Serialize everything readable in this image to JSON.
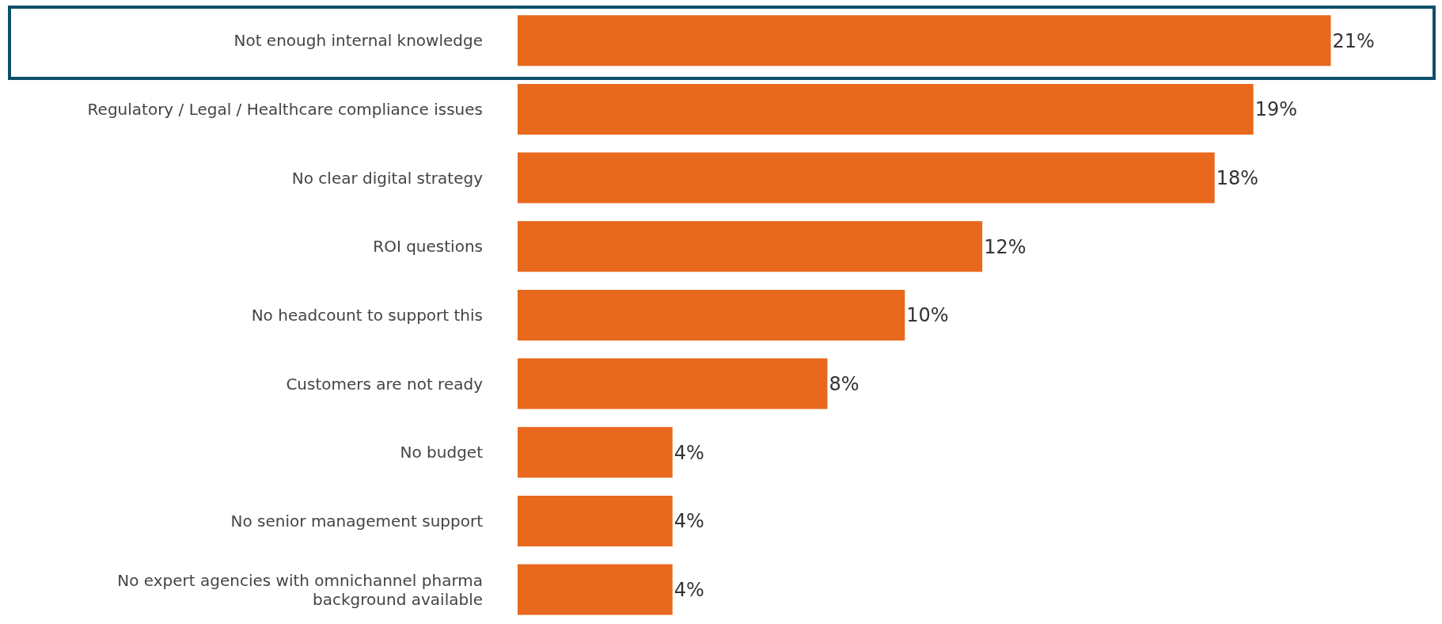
{
  "chart_data": {
    "type": "bar",
    "orientation": "horizontal",
    "categories": [
      "Not enough internal knowledge",
      "Regulatory / Legal / Healthcare compliance issues",
      "No clear digital strategy",
      "ROI questions",
      "No headcount to support this",
      "Customers are not ready",
      "No budget",
      "No senior management support",
      "No expert agencies with omnichannel pharma background available"
    ],
    "values": [
      21,
      19,
      18,
      12,
      10,
      8,
      4,
      4,
      4
    ],
    "value_labels": [
      "21%",
      "19%",
      "18%",
      "12%",
      "10%",
      "8%",
      "4%",
      "4%",
      "4%"
    ],
    "color": "#e8681e"
  }
}
